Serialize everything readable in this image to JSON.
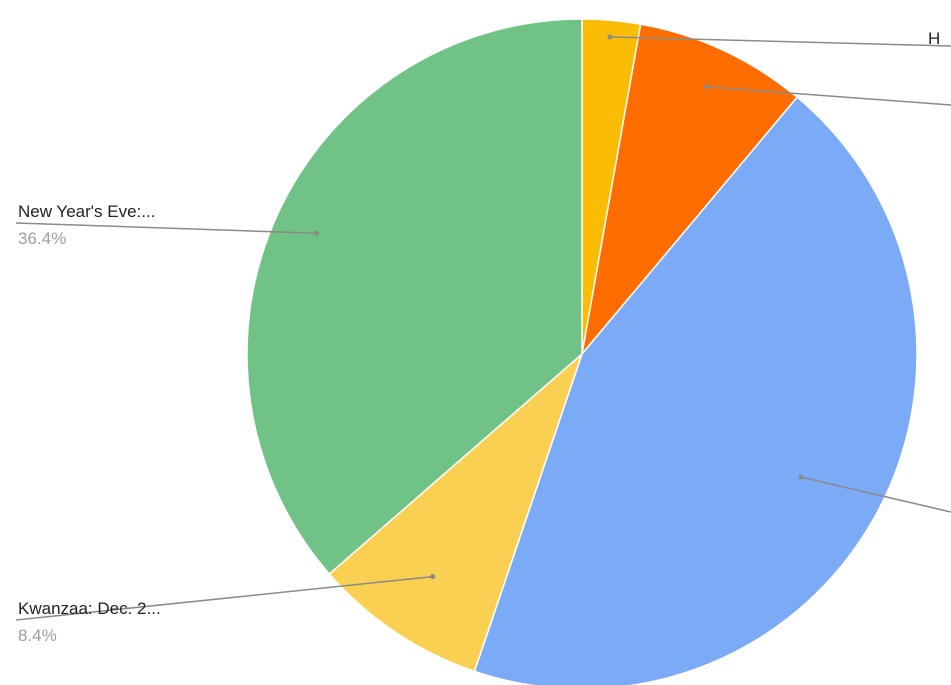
{
  "chart_data": {
    "type": "pie",
    "title": "",
    "slices": [
      {
        "label": "H",
        "value": 2.8,
        "color": "#fbbc04"
      },
      {
        "label": "",
        "value": 8.3,
        "color": "#ff6d00"
      },
      {
        "label": "",
        "value": 44.1,
        "color": "#7baaf7"
      },
      {
        "label": "Kwanzaa: Dec. 2...",
        "value": 8.4,
        "percent_label": "8.4%",
        "color": "#f9d052"
      },
      {
        "label": "New Year's Eve:...",
        "value": 36.4,
        "percent_label": "36.4%",
        "color": "#71c287"
      }
    ],
    "start_angle_deg": 0,
    "direction": "clockwise",
    "legend": "none",
    "label_style": "leader-lines"
  }
}
